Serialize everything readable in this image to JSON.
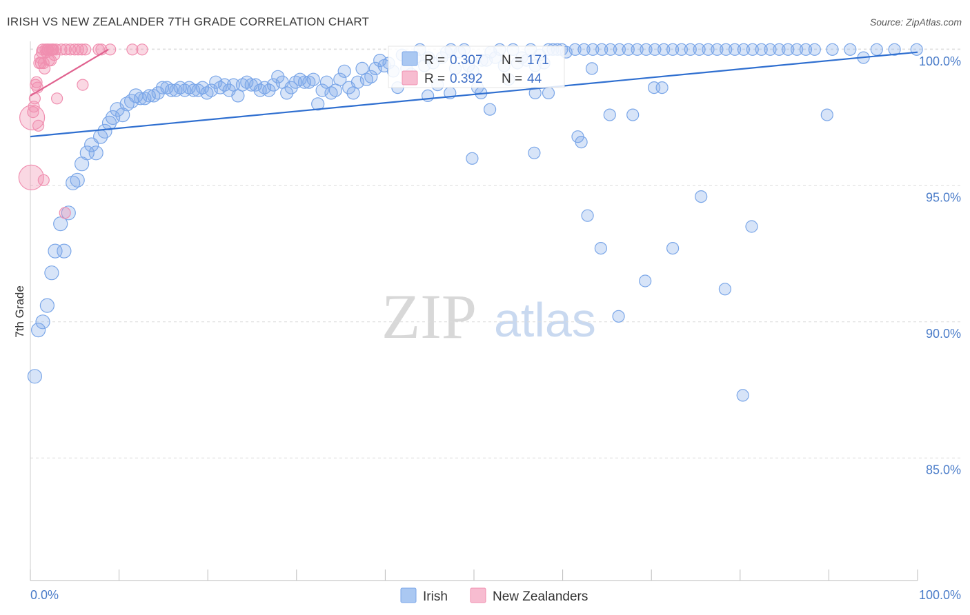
{
  "header": {
    "title": "IRISH VS NEW ZEALANDER 7TH GRADE CORRELATION CHART",
    "source": "Source: ZipAtlas.com"
  },
  "watermark": {
    "zip": "ZIP",
    "atlas": "atlas"
  },
  "stats": {
    "r_label": "R =",
    "n_label": "N =",
    "rows": [
      {
        "r": "0.307",
        "n": "171",
        "color": "#7aa6e8"
      },
      {
        "r": "0.392",
        "n": "44",
        "color": "#f08fb0"
      }
    ]
  },
  "legend": {
    "items": [
      {
        "label": "Irish",
        "color": "#7aa6e8"
      },
      {
        "label": "New Zealanders",
        "color": "#f08fb0"
      }
    ]
  },
  "chart_data": {
    "type": "scatter",
    "title": "IRISH VS NEW ZEALANDER 7TH GRADE CORRELATION CHART",
    "xlabel": "",
    "ylabel": "7th Grade",
    "xlim": [
      0,
      100
    ],
    "ylim": [
      80.5,
      100.5
    ],
    "x_tick_labels": [
      "0.0%",
      "100.0%"
    ],
    "y_ticks": [
      85,
      90,
      95,
      100
    ],
    "y_tick_labels": [
      "85.0%",
      "90.0%",
      "95.0%",
      "100.0%"
    ],
    "grid": true,
    "legend_position": "bottom-center",
    "series": [
      {
        "name": "Irish",
        "color": "#7aa6e8",
        "line_color": "#2f6fd0",
        "trend": {
          "x": [
            0,
            100
          ],
          "y": [
            96.8,
            99.9
          ]
        },
        "points": [
          [
            0.5,
            88.0
          ],
          [
            0.9,
            89.7
          ],
          [
            1.4,
            90.0
          ],
          [
            1.9,
            90.6
          ],
          [
            2.4,
            91.8
          ],
          [
            2.8,
            92.6
          ],
          [
            3.4,
            93.6
          ],
          [
            3.8,
            92.6
          ],
          [
            4.3,
            94.0
          ],
          [
            4.8,
            95.1
          ],
          [
            5.3,
            95.2
          ],
          [
            5.8,
            95.8
          ],
          [
            6.4,
            96.2
          ],
          [
            6.9,
            96.5
          ],
          [
            7.4,
            96.2
          ],
          [
            7.9,
            96.8
          ],
          [
            8.4,
            97.0
          ],
          [
            8.9,
            97.3
          ],
          [
            9.3,
            97.5
          ],
          [
            9.8,
            97.8
          ],
          [
            10.4,
            97.6
          ],
          [
            10.9,
            98.0
          ],
          [
            11.4,
            98.1
          ],
          [
            11.9,
            98.3
          ],
          [
            12.4,
            98.2
          ],
          [
            12.9,
            98.2
          ],
          [
            13.4,
            98.3
          ],
          [
            13.9,
            98.3
          ],
          [
            14.4,
            98.4
          ],
          [
            14.9,
            98.6
          ],
          [
            15.4,
            98.6
          ],
          [
            15.9,
            98.5
          ],
          [
            16.4,
            98.5
          ],
          [
            16.9,
            98.6
          ],
          [
            17.4,
            98.5
          ],
          [
            17.9,
            98.6
          ],
          [
            18.4,
            98.5
          ],
          [
            18.9,
            98.5
          ],
          [
            19.4,
            98.6
          ],
          [
            19.9,
            98.4
          ],
          [
            20.4,
            98.5
          ],
          [
            20.9,
            98.8
          ],
          [
            21.4,
            98.6
          ],
          [
            21.9,
            98.7
          ],
          [
            22.4,
            98.5
          ],
          [
            22.9,
            98.7
          ],
          [
            23.4,
            98.3
          ],
          [
            23.9,
            98.7
          ],
          [
            24.4,
            98.8
          ],
          [
            24.9,
            98.7
          ],
          [
            25.4,
            98.7
          ],
          [
            25.9,
            98.5
          ],
          [
            26.4,
            98.6
          ],
          [
            26.9,
            98.5
          ],
          [
            27.4,
            98.7
          ],
          [
            27.9,
            99.0
          ],
          [
            28.4,
            98.8
          ],
          [
            28.9,
            98.4
          ],
          [
            29.4,
            98.6
          ],
          [
            29.9,
            98.8
          ],
          [
            30.4,
            98.9
          ],
          [
            30.9,
            98.8
          ],
          [
            31.4,
            98.8
          ],
          [
            31.9,
            98.9
          ],
          [
            32.4,
            98.0
          ],
          [
            32.9,
            98.5
          ],
          [
            33.4,
            98.8
          ],
          [
            33.9,
            98.4
          ],
          [
            34.4,
            98.5
          ],
          [
            34.9,
            98.9
          ],
          [
            35.4,
            99.2
          ],
          [
            35.9,
            98.6
          ],
          [
            36.4,
            98.4
          ],
          [
            36.9,
            98.8
          ],
          [
            37.4,
            99.3
          ],
          [
            37.9,
            98.9
          ],
          [
            38.4,
            99.0
          ],
          [
            38.9,
            99.3
          ],
          [
            39.4,
            99.6
          ],
          [
            39.9,
            99.4
          ],
          [
            40.4,
            99.5
          ],
          [
            40.9,
            99.2
          ],
          [
            41.4,
            98.6
          ],
          [
            41.9,
            99.8
          ],
          [
            42.4,
            99.3
          ],
          [
            42.9,
            99.1
          ],
          [
            43.4,
            99.7
          ],
          [
            43.9,
            100.0
          ],
          [
            44.4,
            99.4
          ],
          [
            44.9,
            99.7
          ],
          [
            45.4,
            99.5
          ],
          [
            45.9,
            98.7
          ],
          [
            46.4,
            99.7
          ],
          [
            46.9,
            99.9
          ],
          [
            47.4,
            100.0
          ],
          [
            47.9,
            99.3
          ],
          [
            48.4,
            99.9
          ],
          [
            48.9,
            100.0
          ],
          [
            49.4,
            99.4
          ],
          [
            49.9,
            99.2
          ],
          [
            50.4,
            98.6
          ],
          [
            50.9,
            99.6
          ],
          [
            51.4,
            99.6
          ],
          [
            51.9,
            99.9
          ],
          [
            52.4,
            99.7
          ],
          [
            52.9,
            100.0
          ],
          [
            53.4,
            99.4
          ],
          [
            53.9,
            98.9
          ],
          [
            54.4,
            100.0
          ],
          [
            54.9,
            99.5
          ],
          [
            55.4,
            99.7
          ],
          [
            55.9,
            99.6
          ],
          [
            56.4,
            100.0
          ],
          [
            56.9,
            99.4
          ],
          [
            57.4,
            99.8
          ],
          [
            57.9,
            99.5
          ],
          [
            58.4,
            100.0
          ],
          [
            58.9,
            100.0
          ],
          [
            59.4,
            100.0
          ],
          [
            59.9,
            100.0
          ],
          [
            60.4,
            99.9
          ],
          [
            61.4,
            100.0
          ],
          [
            62.4,
            100.0
          ],
          [
            63.4,
            100.0
          ],
          [
            64.4,
            100.0
          ],
          [
            65.4,
            100.0
          ],
          [
            66.4,
            100.0
          ],
          [
            67.4,
            100.0
          ],
          [
            68.4,
            100.0
          ],
          [
            69.4,
            100.0
          ],
          [
            70.4,
            100.0
          ],
          [
            71.4,
            100.0
          ],
          [
            72.4,
            100.0
          ],
          [
            73.4,
            100.0
          ],
          [
            74.4,
            100.0
          ],
          [
            75.4,
            100.0
          ],
          [
            76.4,
            100.0
          ],
          [
            77.4,
            100.0
          ],
          [
            78.4,
            100.0
          ],
          [
            79.4,
            100.0
          ],
          [
            80.4,
            100.0
          ],
          [
            81.4,
            100.0
          ],
          [
            82.4,
            100.0
          ],
          [
            83.4,
            100.0
          ],
          [
            84.4,
            100.0
          ],
          [
            85.4,
            100.0
          ],
          [
            86.4,
            100.0
          ],
          [
            87.4,
            100.0
          ],
          [
            88.4,
            100.0
          ],
          [
            90.4,
            100.0
          ],
          [
            92.4,
            100.0
          ],
          [
            93.9,
            99.7
          ],
          [
            95.4,
            100.0
          ],
          [
            97.4,
            100.0
          ],
          [
            99.9,
            100.0
          ],
          [
            50.8,
            98.4
          ],
          [
            51.8,
            97.8
          ],
          [
            47.3,
            98.4
          ],
          [
            44.8,
            98.3
          ],
          [
            56.9,
            98.4
          ],
          [
            58.4,
            98.4
          ],
          [
            49.8,
            96.0
          ],
          [
            56.8,
            96.2
          ],
          [
            61.7,
            96.8
          ],
          [
            62.1,
            96.6
          ],
          [
            65.3,
            97.6
          ],
          [
            67.9,
            97.6
          ],
          [
            70.3,
            98.6
          ],
          [
            71.2,
            98.6
          ],
          [
            63.3,
            99.3
          ],
          [
            75.6,
            94.6
          ],
          [
            81.3,
            93.5
          ],
          [
            62.8,
            93.9
          ],
          [
            89.8,
            97.6
          ],
          [
            64.3,
            92.7
          ],
          [
            72.4,
            92.7
          ],
          [
            69.3,
            91.5
          ],
          [
            78.3,
            91.2
          ],
          [
            66.3,
            90.2
          ],
          [
            80.3,
            87.3
          ]
        ]
      },
      {
        "name": "New Zealanders",
        "color": "#f08fb0",
        "line_color": "#e0628f",
        "trend": {
          "x": [
            0,
            8.8
          ],
          "y": [
            98.3,
            100.0
          ]
        },
        "points": [
          [
            0.1,
            95.3
          ],
          [
            0.2,
            97.5
          ],
          [
            0.3,
            97.7
          ],
          [
            0.4,
            97.9
          ],
          [
            0.5,
            98.2
          ],
          [
            0.6,
            98.7
          ],
          [
            0.7,
            98.8
          ],
          [
            0.8,
            98.6
          ],
          [
            0.9,
            97.2
          ],
          [
            1.0,
            99.5
          ],
          [
            1.1,
            99.7
          ],
          [
            1.2,
            99.5
          ],
          [
            1.3,
            99.9
          ],
          [
            1.4,
            100.0
          ],
          [
            1.5,
            99.5
          ],
          [
            1.6,
            99.3
          ],
          [
            1.7,
            100.0
          ],
          [
            1.8,
            99.9
          ],
          [
            1.9,
            100.0
          ],
          [
            2.0,
            100.0
          ],
          [
            2.1,
            99.6
          ],
          [
            2.2,
            100.0
          ],
          [
            2.3,
            99.6
          ],
          [
            2.4,
            100.0
          ],
          [
            2.5,
            100.0
          ],
          [
            2.6,
            100.0
          ],
          [
            2.7,
            99.8
          ],
          [
            2.9,
            100.0
          ],
          [
            3.5,
            100.0
          ],
          [
            4.0,
            100.0
          ],
          [
            4.5,
            100.0
          ],
          [
            5.0,
            100.0
          ],
          [
            5.4,
            100.0
          ],
          [
            5.8,
            100.0
          ],
          [
            6.2,
            100.0
          ],
          [
            7.7,
            100.0
          ],
          [
            8.0,
            100.0
          ],
          [
            9.0,
            100.0
          ],
          [
            11.5,
            100.0
          ],
          [
            12.6,
            100.0
          ],
          [
            1.5,
            95.2
          ],
          [
            3.0,
            98.2
          ],
          [
            3.9,
            94.0
          ],
          [
            5.9,
            98.7
          ]
        ]
      }
    ]
  }
}
